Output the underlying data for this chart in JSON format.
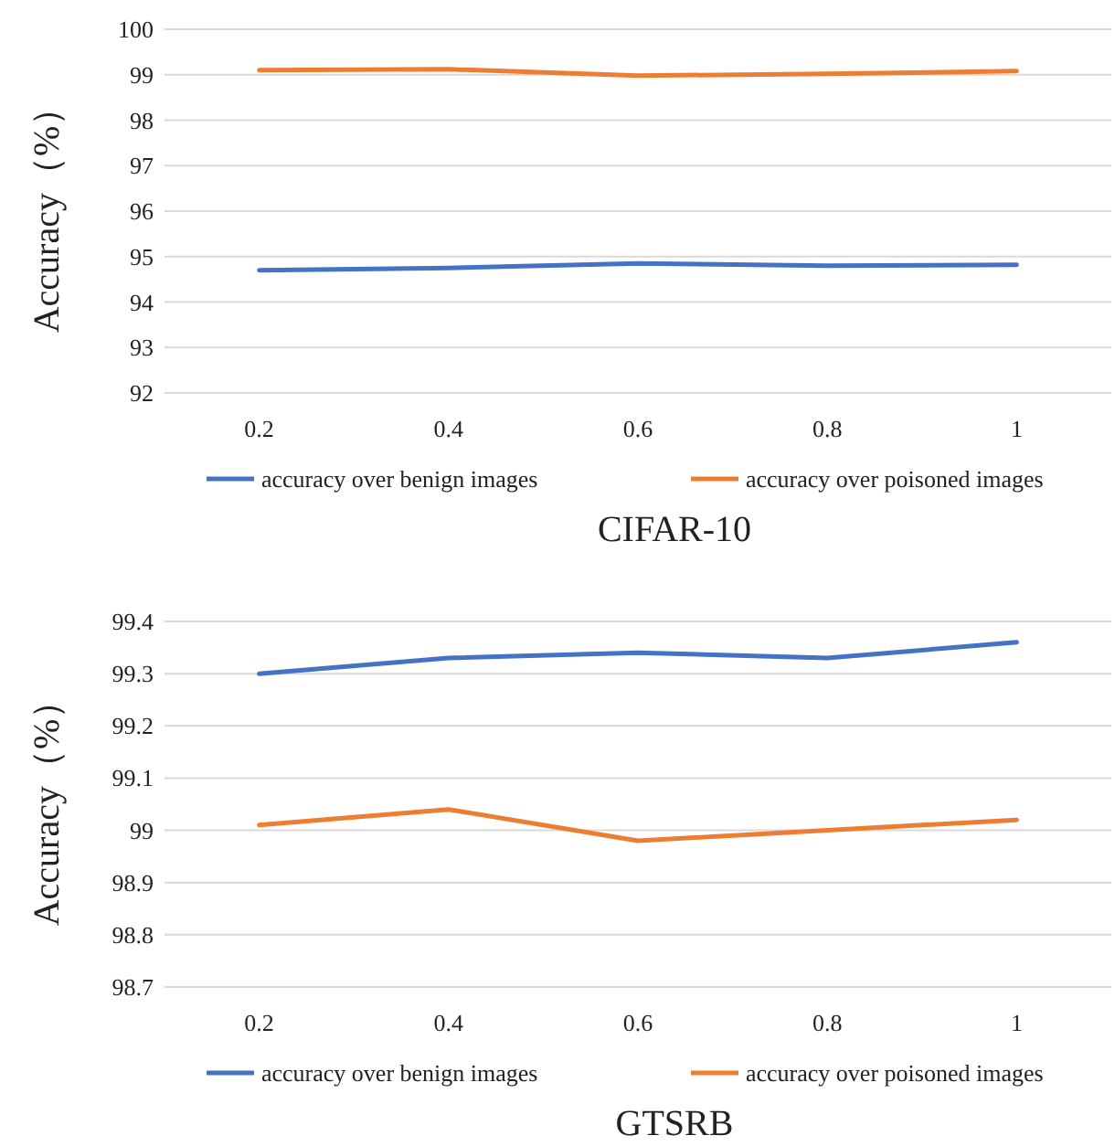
{
  "chart_data": [
    {
      "type": "line",
      "title": "CIFAR-10",
      "ylabel": "Accuracy（%）",
      "categories": [
        "0.2",
        "0.4",
        "0.6",
        "0.8",
        "1"
      ],
      "series": [
        {
          "name": "accuracy over benign images",
          "color": "#4472c4",
          "values": [
            94.7,
            94.75,
            94.85,
            94.8,
            94.82
          ]
        },
        {
          "name": "accuracy over poisoned images",
          "color": "#ed7d31",
          "values": [
            99.1,
            99.12,
            98.98,
            99.02,
            99.08
          ]
        }
      ],
      "ylim": [
        92,
        100
      ],
      "yticks": [
        92,
        93,
        94,
        95,
        96,
        97,
        98,
        99,
        100
      ],
      "grid": "y",
      "legend": "bottom",
      "marker": "none",
      "line_style": "solid"
    },
    {
      "type": "line",
      "title": "GTSRB",
      "ylabel": "Accuracy（%）",
      "categories": [
        "0.2",
        "0.4",
        "0.6",
        "0.8",
        "1"
      ],
      "series": [
        {
          "name": "accuracy over benign images",
          "color": "#4472c4",
          "values": [
            99.3,
            99.33,
            99.34,
            99.33,
            99.36
          ]
        },
        {
          "name": "accuracy over poisoned images",
          "color": "#ed7d31",
          "values": [
            99.01,
            99.04,
            98.98,
            99.0,
            99.02
          ]
        }
      ],
      "ylim": [
        98.7,
        99.4
      ],
      "yticks": [
        98.7,
        98.8,
        98.9,
        99,
        99.1,
        99.2,
        99.3,
        99.4
      ],
      "grid": "y",
      "legend": "bottom",
      "marker": "none",
      "line_style": "solid"
    }
  ]
}
